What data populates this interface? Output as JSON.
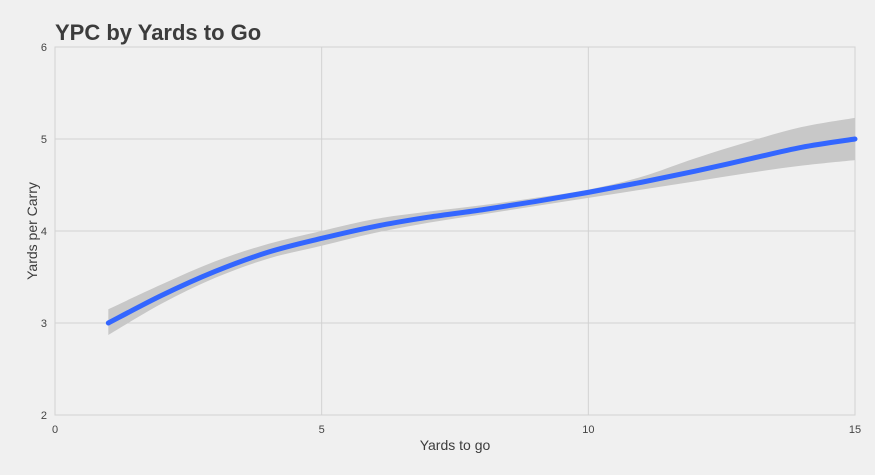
{
  "chart_data": {
    "type": "line",
    "title": "YPC by Yards to Go",
    "xlabel": "Yards to go",
    "ylabel": "Yards per Carry",
    "xlim": [
      0,
      15
    ],
    "ylim": [
      2,
      6
    ],
    "x_ticks": [
      0,
      5,
      10,
      15
    ],
    "y_ticks": [
      2,
      3,
      4,
      5,
      6
    ],
    "x_tick_labels": [
      "0",
      "5",
      "10",
      "15"
    ],
    "y_tick_labels": [
      "2",
      "3",
      "4",
      "5",
      "6"
    ],
    "grid": true,
    "legend": "none",
    "series": [
      {
        "color": "#3366ff",
        "x": [
          1,
          2,
          3,
          4,
          5,
          6,
          7,
          8,
          9,
          10,
          11,
          12,
          13,
          14,
          15
        ],
        "y": [
          3.0,
          3.3,
          3.56,
          3.77,
          3.92,
          4.05,
          4.15,
          4.23,
          4.32,
          4.42,
          4.53,
          4.65,
          4.78,
          4.91,
          5.0
        ],
        "ci_lower": [
          2.87,
          3.21,
          3.49,
          3.7,
          3.84,
          3.98,
          4.09,
          4.18,
          4.27,
          4.36,
          4.45,
          4.54,
          4.63,
          4.71,
          4.77
        ],
        "ci_upper": [
          3.15,
          3.42,
          3.67,
          3.86,
          4.0,
          4.13,
          4.21,
          4.28,
          4.36,
          4.45,
          4.59,
          4.79,
          4.97,
          5.13,
          5.23
        ]
      }
    ],
    "colors": {
      "background": "#f0f0f0",
      "grid": "#d2d2d2",
      "ribbon": "#c8c8c8",
      "line": "#3366ff"
    }
  }
}
